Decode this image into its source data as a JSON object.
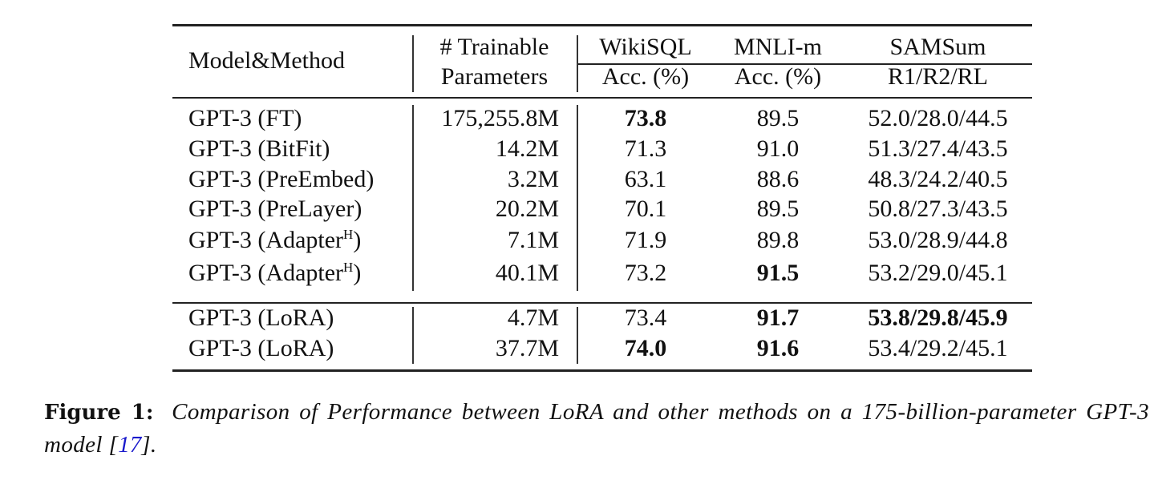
{
  "table": {
    "headers": {
      "model": "Model&Method",
      "params_top": "# Trainable",
      "params_bottom": "Parameters",
      "wikisql_top": "WikiSQL",
      "wikisql_bottom": "Acc. (%)",
      "mnli_top": "MNLI-m",
      "mnli_bottom": "Acc. (%)",
      "samsum_top": "SAMSum",
      "samsum_bottom": "R1/R2/RL"
    },
    "rows": [
      {
        "model": "GPT-3 (FT)",
        "sup": "",
        "params": "175,255.8M",
        "wikisql": "73.8",
        "mnli": "89.5",
        "samsum": "52.0/28.0/44.5",
        "bold": [
          "wikisql"
        ]
      },
      {
        "model": "GPT-3 (BitFit)",
        "sup": "",
        "params": "14.2M",
        "wikisql": "71.3",
        "mnli": "91.0",
        "samsum": "51.3/27.4/43.5",
        "bold": []
      },
      {
        "model": "GPT-3 (PreEmbed)",
        "sup": "",
        "params": "3.2M",
        "wikisql": "63.1",
        "mnli": "88.6",
        "samsum": "48.3/24.2/40.5",
        "bold": []
      },
      {
        "model": "GPT-3 (PreLayer)",
        "sup": "",
        "params": "20.2M",
        "wikisql": "70.1",
        "mnli": "89.5",
        "samsum": "50.8/27.3/43.5",
        "bold": []
      },
      {
        "model": "GPT-3 (Adapter",
        "sup": "H",
        "params": "7.1M",
        "wikisql": "71.9",
        "mnli": "89.8",
        "samsum": "53.0/28.9/44.8",
        "bold": []
      },
      {
        "model": "GPT-3 (Adapter",
        "sup": "H",
        "params": "40.1M",
        "wikisql": "73.2",
        "mnli": "91.5",
        "samsum": "53.2/29.0/45.1",
        "bold": [
          "mnli"
        ]
      },
      {
        "model": "GPT-3 (LoRA)",
        "sup": "",
        "params": "4.7M",
        "wikisql": "73.4",
        "mnli": "91.7",
        "samsum": "53.8/29.8/45.9",
        "bold": [
          "mnli",
          "samsum"
        ]
      },
      {
        "model": "GPT-3 (LoRA)",
        "sup": "",
        "params": "37.7M",
        "wikisql": "74.0",
        "mnli": "91.6",
        "samsum": "53.4/29.2/45.1",
        "bold": [
          "wikisql",
          "mnli"
        ]
      }
    ]
  },
  "caption": {
    "label": "Figure 1:",
    "text": "Comparison of Performance between LoRA and other methods on a 175-billion-parameter GPT-3 model [",
    "ref": "17",
    "end": "]."
  },
  "colors": {
    "ref_link": "#1a1acc"
  }
}
